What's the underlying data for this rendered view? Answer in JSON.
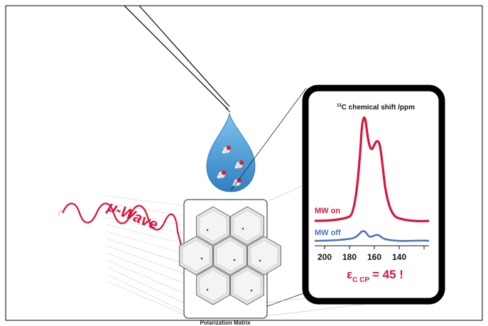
{
  "wave_label": "μ-Wave",
  "matrix_label": "Polarization Matrix",
  "spectrum": {
    "title_sup": "13",
    "title": "C chemical shift /ppm",
    "mw_on_label": "MW on",
    "mw_off_label": "MW off",
    "ticks": [
      "200",
      "180",
      "160",
      "140"
    ],
    "enhancement_symbol": "ε",
    "enhancement_sub": "C CP",
    "enhancement_value": "= 45 !"
  },
  "colors": {
    "mw_on": "#d6163a",
    "mw_off": "#4a72b8",
    "droplet": "#3a8fd0",
    "wave": "#d6163a",
    "frame": "#000000"
  }
}
